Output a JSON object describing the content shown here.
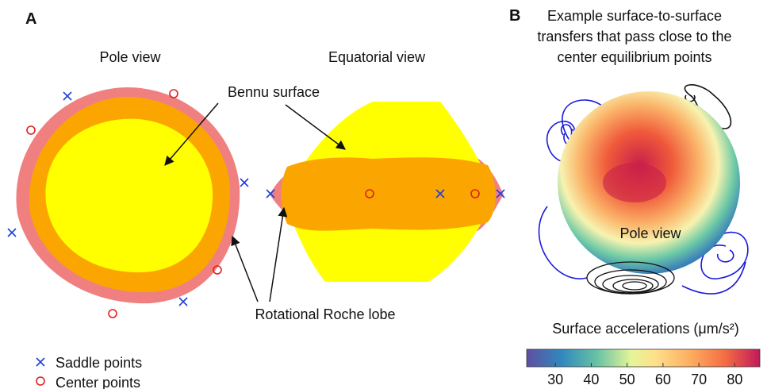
{
  "panel_a": {
    "label": "A",
    "pole_view": "Pole view",
    "equatorial_view": "Equatorial view",
    "bennu_surface": "Bennu surface",
    "roche_lobe": "Rotational Roche lobe",
    "legend": [
      "Saddle points",
      "Center points"
    ]
  },
  "panel_b": {
    "label": "B",
    "title_lines": [
      "Example surface-to-surface",
      "transfers that pass close to the",
      "center equilibrium points"
    ],
    "pole_view": "Pole view",
    "colorbar": {
      "label": "Surface accelerations (μm/s²)",
      "lim": [
        22,
        87
      ],
      "ticks": [
        30,
        40,
        50,
        60,
        70,
        80
      ]
    }
  }
}
